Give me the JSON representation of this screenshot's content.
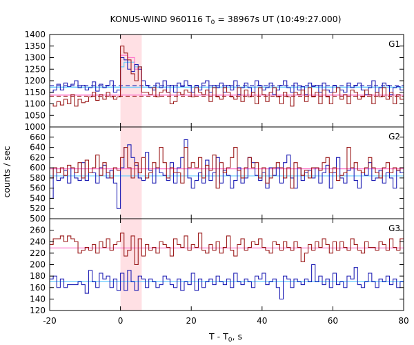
{
  "chart_data": {
    "type": "line",
    "title": "KONUS-WIND 960116 T",
    "title_sub": "0",
    "title_rest": " = 38967s UT (10:49:27.000)",
    "xlabel": "T - T",
    "xlabel_sub": "0",
    "xlabel_rest": ", s",
    "ylabel": "counts / sec",
    "xlim": [
      -20,
      80
    ],
    "xticks": [
      -20,
      0,
      20,
      40,
      60,
      80
    ],
    "highlight_interval": [
      0,
      6
    ],
    "highlight_color": "#ffe0e4",
    "panels": [
      {
        "name": "G1",
        "ylim": [
          1000,
          1400
        ],
        "yticks": [
          1000,
          1050,
          1100,
          1150,
          1200,
          1250,
          1300,
          1350,
          1400
        ],
        "series": [
          {
            "color": "#1f1fb4",
            "bin_start": -20,
            "bin_width": 1,
            "values": [
              1150,
              1160,
              1185,
              1160,
              1190,
              1175,
              1185,
              1200,
              1170,
              1180,
              1160,
              1170,
              1195,
              1155,
              1185,
              1170,
              1180,
              1200,
              1150,
              1160,
              1300,
              1290,
              1250,
              1240,
              1270,
              1250,
              1200,
              1180,
              1170,
              1160,
              1190,
              1170,
              1200,
              1150,
              1180,
              1150,
              1190,
              1175,
              1200,
              1180,
              1150,
              1180,
              1160,
              1190,
              1200,
              1150,
              1180,
              1170,
              1190,
              1150,
              1180,
              1160,
              1200,
              1140,
              1170,
              1190,
              1170,
              1150,
              1200,
              1180,
              1160,
              1170,
              1190,
              1140,
              1160,
              1180,
              1200,
              1170,
              1150,
              1190,
              1160,
              1175,
              1140,
              1190,
              1175,
              1180,
              1150,
              1190,
              1160,
              1150,
              1180,
              1170,
              1160,
              1150,
              1190,
              1170,
              1180,
              1190,
              1160,
              1140,
              1170,
              1200,
              1150,
              1170,
              1190,
              1180,
              1140,
              1170,
              1175,
              1160
            ]
          },
          {
            "color": "#9b1b1b",
            "bin_start": -20,
            "bin_width": 1,
            "values": [
              1100,
              1090,
              1110,
              1095,
              1120,
              1100,
              1140,
              1090,
              1120,
              1105,
              1110,
              1130,
              1150,
              1115,
              1140,
              1120,
              1150,
              1130,
              1120,
              1130,
              1350,
              1320,
              1290,
              1230,
              1200,
              1260,
              1150,
              1150,
              1140,
              1170,
              1130,
              1150,
              1160,
              1150,
              1100,
              1110,
              1150,
              1140,
              1160,
              1150,
              1130,
              1170,
              1150,
              1140,
              1160,
              1110,
              1170,
              1130,
              1120,
              1170,
              1150,
              1130,
              1120,
              1170,
              1110,
              1160,
              1130,
              1150,
              1100,
              1170,
              1140,
              1110,
              1150,
              1170,
              1130,
              1100,
              1150,
              1130,
              1090,
              1150,
              1140,
              1160,
              1110,
              1170,
              1130,
              1150,
              1100,
              1160,
              1130,
              1100,
              1150,
              1170,
              1120,
              1140,
              1100,
              1160,
              1150,
              1120,
              1130,
              1160,
              1140,
              1100,
              1150,
              1130,
              1170,
              1120,
              1150,
              1100,
              1140,
              1120
            ]
          }
        ],
        "reference_lines": [
          {
            "value": 1178,
            "color": "#1f1fb4",
            "style": "dashed"
          },
          {
            "value": 1133,
            "color": "#9b1b1b",
            "style": "dashed"
          },
          {
            "value": 1172,
            "color": "#66ccff",
            "style": "solid"
          },
          {
            "value": 1138,
            "color": "#ff77cc",
            "style": "solid"
          }
        ],
        "steps": [
          {
            "color": "#66ccff",
            "segments": [
              [
                -20,
                1172
              ],
              [
                0,
                1172
              ],
              [
                0,
                1260
              ],
              [
                1,
                1260
              ],
              [
                1,
                1280
              ],
              [
                4,
                1280
              ],
              [
                4,
                1260
              ],
              [
                6,
                1260
              ],
              [
                6,
                1172
              ],
              [
                80,
                1172
              ]
            ]
          },
          {
            "color": "#ff77cc",
            "segments": [
              [
                -20,
                1138
              ],
              [
                0,
                1138
              ],
              [
                0,
                1310
              ],
              [
                2,
                1310
              ],
              [
                2,
                1300
              ],
              [
                4,
                1300
              ],
              [
                4,
                1250
              ],
              [
                6,
                1250
              ],
              [
                6,
                1138
              ],
              [
                80,
                1138
              ]
            ]
          }
        ]
      },
      {
        "name": "G2",
        "ylim": [
          500,
          680
        ],
        "yticks": [
          500,
          520,
          540,
          560,
          580,
          600,
          620,
          640,
          660
        ],
        "series": [
          {
            "color": "#1f1fb4",
            "bin_start": -20,
            "bin_width": 1,
            "values": [
              540,
              600,
              575,
              580,
              595,
              570,
              600,
              580,
              575,
              610,
              575,
              590,
              590,
              570,
              600,
              605,
              580,
              595,
              570,
              520,
              600,
              640,
              645,
              620,
              605,
              580,
              575,
              630,
              595,
              570,
              600,
              590,
              585,
              575,
              610,
              570,
              600,
              620,
              655,
              580,
              560,
              575,
              590,
              570,
              615,
              575,
              590,
              620,
              570,
              595,
              585,
              560,
              575,
              600,
              570,
              580,
              620,
              610,
              585,
              575,
              590,
              560,
              600,
              585,
              600,
              570,
              610,
              625,
              580,
              560,
              600,
              575,
              590,
              595,
              580,
              600,
              570,
              590,
              605,
              560,
              590,
              620,
              580,
              570,
              595,
              600,
              575,
              560,
              590,
              585,
              610,
              575,
              580,
              595,
              570,
              590,
              580,
              560,
              595,
              590
            ]
          },
          {
            "color": "#9b1b1b",
            "bin_start": -20,
            "bin_width": 1,
            "values": [
              580,
              600,
              590,
              600,
              585,
              605,
              600,
              590,
              610,
              580,
              615,
              590,
              600,
              625,
              585,
              610,
              590,
              580,
              600,
              595,
              620,
              640,
              600,
              580,
              610,
              590,
              620,
              580,
              590,
              610,
              600,
              640,
              610,
              580,
              600,
              590,
              590,
              570,
              640,
              600,
              610,
              600,
              620,
              580,
              605,
              595,
              625,
              560,
              610,
              590,
              600,
              620,
              640,
              595,
              580,
              600,
              620,
              600,
              610,
              580,
              600,
              570,
              580,
              600,
              610,
              600,
              580,
              600,
              560,
              610,
              600,
              585,
              595,
              580,
              600,
              600,
              595,
              610,
              620,
              590,
              600,
              575,
              585,
              590,
              640,
              600,
              610,
              595,
              590,
              600,
              620,
              600,
              590,
              580,
              600,
              610,
              590,
              600,
              595,
              600
            ]
          }
        ],
        "reference_lines": [
          {
            "value": 584,
            "color": "#66ccff",
            "style": "solid"
          },
          {
            "value": 598,
            "color": "#ff77cc",
            "style": "solid"
          }
        ],
        "steps": []
      },
      {
        "name": "G3",
        "ylim": [
          120,
          280
        ],
        "yticks": [
          120,
          140,
          160,
          180,
          200,
          220,
          240,
          260
        ],
        "series": [
          {
            "color": "#1f1fb4",
            "bin_start": -20,
            "bin_width": 1,
            "values": [
              175,
              180,
              160,
              175,
              160,
              165,
              165,
              165,
              170,
              165,
              150,
              190,
              170,
              160,
              185,
              175,
              180,
              160,
              175,
              155,
              185,
              155,
              190,
              170,
              155,
              180,
              175,
              160,
              175,
              170,
              160,
              165,
              180,
              175,
              165,
              160,
              175,
              155,
              170,
              165,
              185,
              155,
              175,
              160,
              170,
              175,
              165,
              180,
              170,
              165,
              175,
              160,
              185,
              170,
              165,
              175,
              170,
              160,
              180,
              175,
              185,
              165,
              170,
              175,
              160,
              140,
              180,
              175,
              160,
              175,
              170,
              165,
              175,
              170,
              200,
              170,
              180,
              165,
              175,
              160,
              185,
              165,
              170,
              160,
              180,
              175,
              195,
              165,
              160,
              170,
              185,
              170,
              160,
              175,
              170,
              180,
              165,
              175,
              160,
              170
            ]
          },
          {
            "color": "#9b1b1b",
            "bin_start": -20,
            "bin_width": 1,
            "values": [
              235,
              245,
              245,
              250,
              240,
              250,
              245,
              240,
              220,
              225,
              230,
              225,
              235,
              220,
              240,
              230,
              245,
              225,
              235,
              240,
              255,
              215,
              225,
              250,
              200,
              245,
              215,
              235,
              225,
              230,
              220,
              240,
              235,
              230,
              215,
              245,
              235,
              230,
              250,
              225,
              235,
              230,
              255,
              225,
              220,
              235,
              225,
              240,
              220,
              230,
              250,
              225,
              215,
              235,
              245,
              225,
              230,
              240,
              235,
              245,
              230,
              225,
              220,
              240,
              235,
              225,
              240,
              230,
              225,
              240,
              230,
              205,
              220,
              235,
              225,
              240,
              230,
              245,
              235,
              220,
              240,
              225,
              240,
              230,
              225,
              245,
              235,
              225,
              220,
              240,
              230,
              230,
              225,
              240,
              235,
              225,
              245,
              230,
              225,
              245
            ]
          }
        ],
        "reference_lines": [
          {
            "value": 229,
            "color": "#ff77cc",
            "style": "solid"
          },
          {
            "value": 171,
            "color": "#66ccff",
            "style": "solid"
          }
        ],
        "steps": []
      }
    ]
  }
}
